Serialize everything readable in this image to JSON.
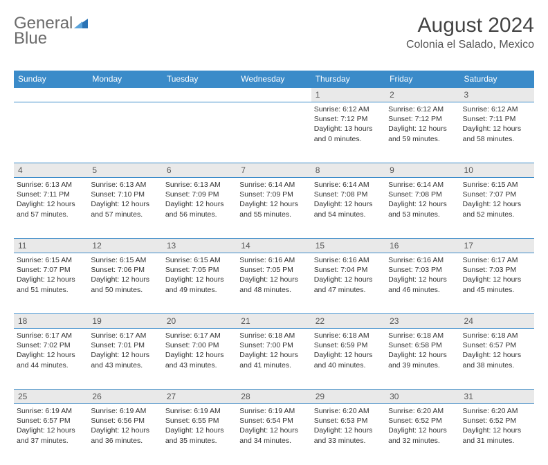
{
  "brand": {
    "part1": "General",
    "part2": "Blue"
  },
  "title": "August 2024",
  "location": "Colonia el Salado, Mexico",
  "colors": {
    "header_bg": "#3b8bc9",
    "header_text": "#ffffff",
    "daynum_bg": "#e9e9e9",
    "border": "#3b8bc9",
    "logo_text": "#6b6b6b",
    "logo_blue": "#2a73b5",
    "title_color": "#444444"
  },
  "dayHeaders": [
    "Sunday",
    "Monday",
    "Tuesday",
    "Wednesday",
    "Thursday",
    "Friday",
    "Saturday"
  ],
  "weeks": [
    {
      "nums": [
        "",
        "",
        "",
        "",
        "1",
        "2",
        "3"
      ],
      "cells": [
        null,
        null,
        null,
        null,
        {
          "sunrise": "6:12 AM",
          "sunset": "7:12 PM",
          "daylight": "13 hours and 0 minutes."
        },
        {
          "sunrise": "6:12 AM",
          "sunset": "7:12 PM",
          "daylight": "12 hours and 59 minutes."
        },
        {
          "sunrise": "6:12 AM",
          "sunset": "7:11 PM",
          "daylight": "12 hours and 58 minutes."
        }
      ]
    },
    {
      "nums": [
        "4",
        "5",
        "6",
        "7",
        "8",
        "9",
        "10"
      ],
      "cells": [
        {
          "sunrise": "6:13 AM",
          "sunset": "7:11 PM",
          "daylight": "12 hours and 57 minutes."
        },
        {
          "sunrise": "6:13 AM",
          "sunset": "7:10 PM",
          "daylight": "12 hours and 57 minutes."
        },
        {
          "sunrise": "6:13 AM",
          "sunset": "7:09 PM",
          "daylight": "12 hours and 56 minutes."
        },
        {
          "sunrise": "6:14 AM",
          "sunset": "7:09 PM",
          "daylight": "12 hours and 55 minutes."
        },
        {
          "sunrise": "6:14 AM",
          "sunset": "7:08 PM",
          "daylight": "12 hours and 54 minutes."
        },
        {
          "sunrise": "6:14 AM",
          "sunset": "7:08 PM",
          "daylight": "12 hours and 53 minutes."
        },
        {
          "sunrise": "6:15 AM",
          "sunset": "7:07 PM",
          "daylight": "12 hours and 52 minutes."
        }
      ]
    },
    {
      "nums": [
        "11",
        "12",
        "13",
        "14",
        "15",
        "16",
        "17"
      ],
      "cells": [
        {
          "sunrise": "6:15 AM",
          "sunset": "7:07 PM",
          "daylight": "12 hours and 51 minutes."
        },
        {
          "sunrise": "6:15 AM",
          "sunset": "7:06 PM",
          "daylight": "12 hours and 50 minutes."
        },
        {
          "sunrise": "6:15 AM",
          "sunset": "7:05 PM",
          "daylight": "12 hours and 49 minutes."
        },
        {
          "sunrise": "6:16 AM",
          "sunset": "7:05 PM",
          "daylight": "12 hours and 48 minutes."
        },
        {
          "sunrise": "6:16 AM",
          "sunset": "7:04 PM",
          "daylight": "12 hours and 47 minutes."
        },
        {
          "sunrise": "6:16 AM",
          "sunset": "7:03 PM",
          "daylight": "12 hours and 46 minutes."
        },
        {
          "sunrise": "6:17 AM",
          "sunset": "7:03 PM",
          "daylight": "12 hours and 45 minutes."
        }
      ]
    },
    {
      "nums": [
        "18",
        "19",
        "20",
        "21",
        "22",
        "23",
        "24"
      ],
      "cells": [
        {
          "sunrise": "6:17 AM",
          "sunset": "7:02 PM",
          "daylight": "12 hours and 44 minutes."
        },
        {
          "sunrise": "6:17 AM",
          "sunset": "7:01 PM",
          "daylight": "12 hours and 43 minutes."
        },
        {
          "sunrise": "6:17 AM",
          "sunset": "7:00 PM",
          "daylight": "12 hours and 43 minutes."
        },
        {
          "sunrise": "6:18 AM",
          "sunset": "7:00 PM",
          "daylight": "12 hours and 41 minutes."
        },
        {
          "sunrise": "6:18 AM",
          "sunset": "6:59 PM",
          "daylight": "12 hours and 40 minutes."
        },
        {
          "sunrise": "6:18 AM",
          "sunset": "6:58 PM",
          "daylight": "12 hours and 39 minutes."
        },
        {
          "sunrise": "6:18 AM",
          "sunset": "6:57 PM",
          "daylight": "12 hours and 38 minutes."
        }
      ]
    },
    {
      "nums": [
        "25",
        "26",
        "27",
        "28",
        "29",
        "30",
        "31"
      ],
      "cells": [
        {
          "sunrise": "6:19 AM",
          "sunset": "6:57 PM",
          "daylight": "12 hours and 37 minutes."
        },
        {
          "sunrise": "6:19 AM",
          "sunset": "6:56 PM",
          "daylight": "12 hours and 36 minutes."
        },
        {
          "sunrise": "6:19 AM",
          "sunset": "6:55 PM",
          "daylight": "12 hours and 35 minutes."
        },
        {
          "sunrise": "6:19 AM",
          "sunset": "6:54 PM",
          "daylight": "12 hours and 34 minutes."
        },
        {
          "sunrise": "6:20 AM",
          "sunset": "6:53 PM",
          "daylight": "12 hours and 33 minutes."
        },
        {
          "sunrise": "6:20 AM",
          "sunset": "6:52 PM",
          "daylight": "12 hours and 32 minutes."
        },
        {
          "sunrise": "6:20 AM",
          "sunset": "6:52 PM",
          "daylight": "12 hours and 31 minutes."
        }
      ]
    }
  ],
  "labels": {
    "sunrise": "Sunrise: ",
    "sunset": "Sunset: ",
    "daylight": "Daylight: "
  }
}
